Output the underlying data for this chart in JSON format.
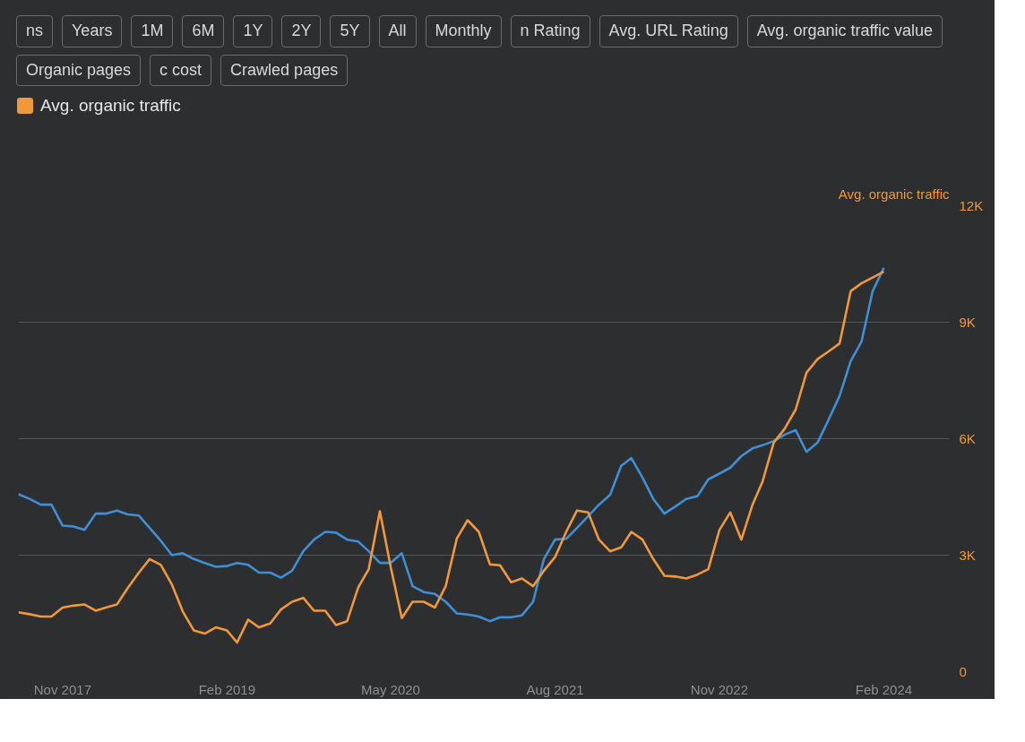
{
  "chart_data": {
    "type": "line",
    "ylabel": "Avg. organic traffic",
    "legend": "top",
    "grid": "y",
    "annotations": [
      "ns",
      "Years",
      "1M",
      "6M",
      "1Y",
      "2Y",
      "5Y",
      "All",
      "Monthly",
      "n Rating",
      "Avg. URL Rating",
      "Avg. organic traffic value",
      "Organic pages",
      "c cost",
      "Crawled pages"
    ],
    "x": [
      "2017-07",
      "2017-08",
      "2017-09",
      "2017-10",
      "2017-11",
      "2017-12",
      "2018-01",
      "2018-02",
      "2018-03",
      "2018-04",
      "2018-05",
      "2018-06",
      "2018-07",
      "2018-08",
      "2018-09",
      "2018-10",
      "2018-11",
      "2018-12",
      "2019-01",
      "2019-02",
      "2019-03",
      "2019-04",
      "2019-05",
      "2019-06",
      "2019-07",
      "2019-08",
      "2019-09",
      "2019-10",
      "2019-11",
      "2019-12",
      "2020-01",
      "2020-02",
      "2020-03",
      "2020-04",
      "2020-05",
      "2020-06",
      "2020-07",
      "2020-08",
      "2020-09",
      "2020-10",
      "2020-11",
      "2020-12",
      "2021-01",
      "2021-02",
      "2021-03",
      "2021-04",
      "2021-05",
      "2021-06",
      "2021-07",
      "2021-08",
      "2021-09",
      "2021-10",
      "2021-11",
      "2021-12",
      "2022-01",
      "2022-02",
      "2022-03",
      "2022-04",
      "2022-05",
      "2022-06",
      "2022-07",
      "2022-08",
      "2022-09",
      "2022-10",
      "2022-11",
      "2022-12",
      "2023-01",
      "2023-02",
      "2023-03",
      "2023-04",
      "2023-05",
      "2023-06",
      "2023-07",
      "2023-08",
      "2023-09",
      "2023-10",
      "2023-11",
      "2023-12",
      "2024-01",
      "2024-02"
    ],
    "xlim": [
      "2017-07",
      "2024-08"
    ],
    "xticks": [
      {
        "value": "2017-11",
        "label": "Nov 2017"
      },
      {
        "value": "2019-02",
        "label": "Feb 2019"
      },
      {
        "value": "2020-05",
        "label": "May 2020"
      },
      {
        "value": "2021-08",
        "label": "Aug 2021"
      },
      {
        "value": "2022-11",
        "label": "Nov 2022"
      },
      {
        "value": "2024-02",
        "label": "Feb 2024"
      }
    ],
    "ylim": [
      0,
      12000
    ],
    "yticks": [
      0,
      {
        "value": 3000,
        "label": "3K"
      },
      {
        "value": 6000,
        "label": "6K"
      },
      {
        "value": 9000,
        "label": "9K"
      },
      {
        "value": 12000,
        "label": "12K"
      }
    ],
    "series": [
      {
        "color": "#3f8fd6",
        "values": [
          4570,
          4450,
          4300,
          4300,
          3760,
          3740,
          3650,
          4070,
          4070,
          4150,
          4050,
          4020,
          3700,
          3370,
          3000,
          3050,
          2900,
          2800,
          2700,
          2720,
          2800,
          2750,
          2550,
          2550,
          2420,
          2600,
          3100,
          3400,
          3600,
          3580,
          3400,
          3350,
          3100,
          2800,
          2800,
          3050,
          2200,
          2050,
          2000,
          1800,
          1500,
          1470,
          1420,
          1300,
          1400,
          1400,
          1450,
          1800,
          2900,
          3400,
          3420,
          3700,
          4000,
          4300,
          4550,
          5300,
          5500,
          5000,
          4450,
          4070,
          4250,
          4450,
          4520,
          4950,
          5100,
          5250,
          5550,
          5750,
          5830,
          5940,
          6100,
          6220,
          5660,
          5900,
          6500,
          7100,
          8000,
          8500,
          9800,
          10400
        ]
      },
      {
        "name": "Avg. organic traffic",
        "color": "#f0983a",
        "values": [
          1530,
          1480,
          1420,
          1420,
          1650,
          1700,
          1730,
          1570,
          1650,
          1730,
          2150,
          2550,
          2900,
          2750,
          2240,
          1550,
          1060,
          980,
          1140,
          1060,
          750,
          1340,
          1140,
          1240,
          1600,
          1800,
          1900,
          1570,
          1570,
          1200,
          1300,
          2170,
          2640,
          4130,
          2700,
          1380,
          1800,
          1800,
          1650,
          2200,
          3430,
          3900,
          3600,
          2760,
          2740,
          2300,
          2400,
          2200,
          2600,
          2950,
          3600,
          4150,
          4100,
          3400,
          3100,
          3200,
          3600,
          3400,
          2900,
          2470,
          2450,
          2400,
          2500,
          2640,
          3650,
          4100,
          3400,
          4300,
          4900,
          5900,
          6250,
          6750,
          7700,
          8050,
          8250,
          8450,
          9800,
          10000,
          10150,
          10300
        ]
      }
    ]
  }
}
